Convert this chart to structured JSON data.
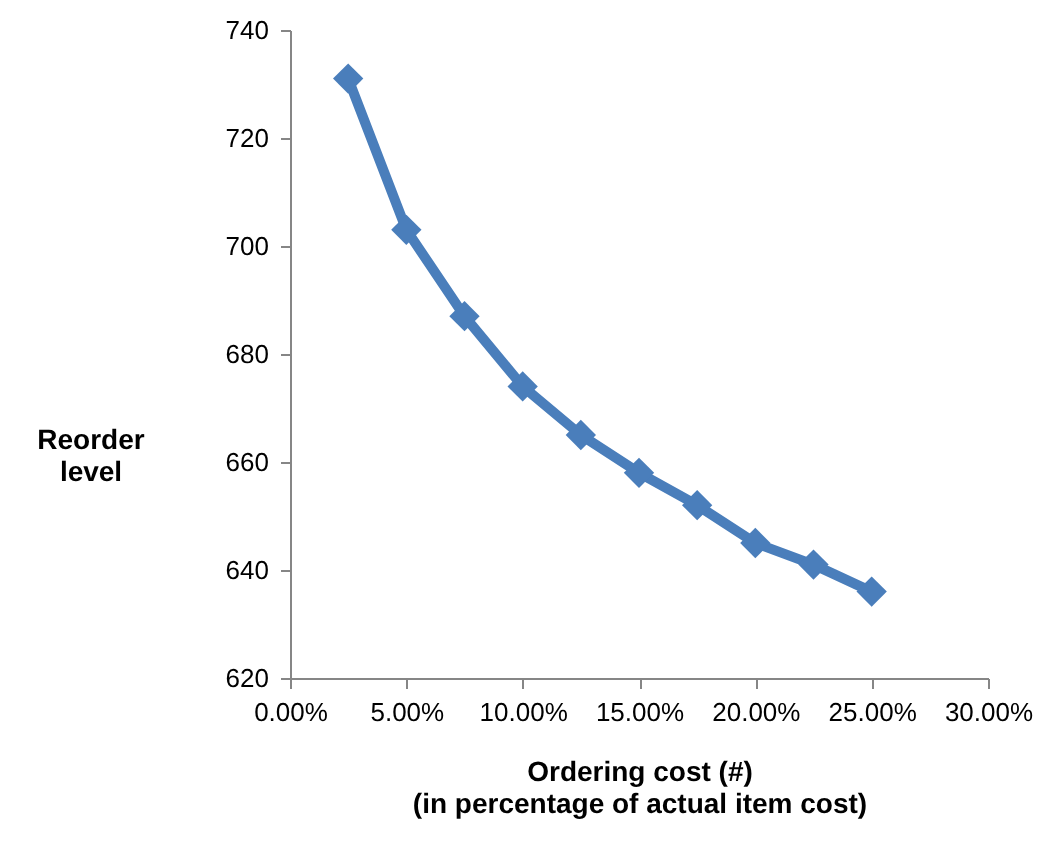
{
  "chart_data": {
    "type": "line",
    "xlabel": "Ordering cost (#)\n(in percentage of actual item cost)",
    "ylabel": "Reorder\nlevel",
    "x": [
      2.5,
      5,
      7.5,
      10,
      12.5,
      15,
      17.5,
      20,
      22.5,
      25
    ],
    "series": [
      {
        "color": "#4a7ebb",
        "values": [
          731,
          703,
          687,
          674,
          665,
          658,
          652,
          645,
          641,
          636
        ]
      }
    ],
    "xlim": [
      0,
      30
    ],
    "xticks": [
      {
        "value": 0,
        "label": "0.00%"
      },
      {
        "value": 5,
        "label": "5.00%"
      },
      {
        "value": 10,
        "label": "10.00%"
      },
      {
        "value": 15,
        "label": "15.00%"
      },
      {
        "value": 20,
        "label": "20.00%"
      },
      {
        "value": 25,
        "label": "25.00%"
      },
      {
        "value": 30,
        "label": "30.00%"
      }
    ],
    "ylim": [
      620,
      740
    ],
    "yticks": [
      620,
      640,
      660,
      680,
      700,
      720,
      740
    ],
    "marker": "diamond",
    "line_style": "solid"
  }
}
